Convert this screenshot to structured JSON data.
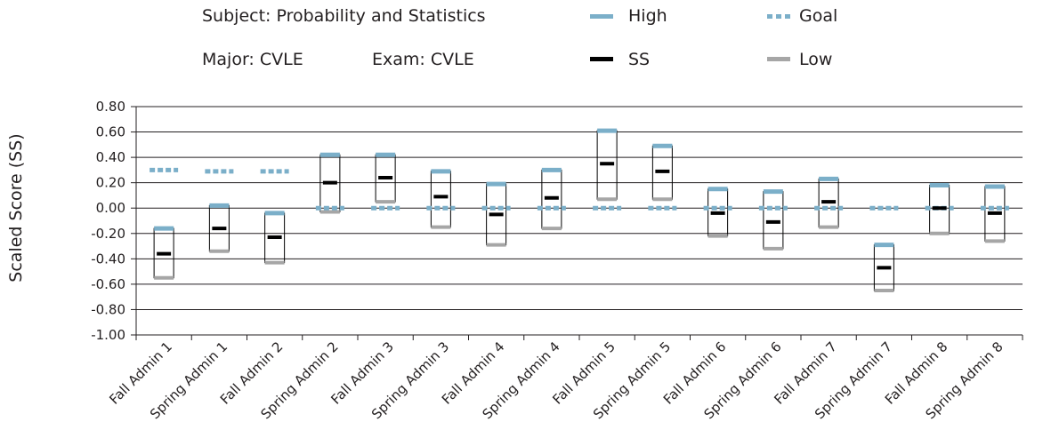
{
  "header": {
    "subject": "Subject: Probability and Statistics",
    "major": "Major: CVLE",
    "exam": "Exam: CVLE"
  },
  "legend": [
    {
      "label": "High",
      "style": "solid",
      "color": "#7bafc9"
    },
    {
      "label": "Goal",
      "style": "dotted",
      "color": "#7bafc9"
    },
    {
      "label": "SS",
      "style": "solid",
      "color": "#000000"
    },
    {
      "label": "Low",
      "style": "solid",
      "color": "#a6a6a6"
    }
  ],
  "chart_data": {
    "type": "high-low-close",
    "ylabel": "Scaled Score (SS)",
    "xlabel": "",
    "ylim": [
      -1.0,
      0.8
    ],
    "yticks": [
      "0.80",
      "0.60",
      "0.40",
      "0.20",
      "0.00",
      "-0.20",
      "-0.40",
      "-0.60",
      "-0.80",
      "-1.00"
    ],
    "grid": true,
    "legend_position": "top",
    "categories": [
      "Fall Admin 1",
      "Spring Admin 1",
      "Fall Admin 2",
      "Spring Admin 2",
      "Fall Admin 3",
      "Spring Admin 3",
      "Fall Admin 4",
      "Spring Admin 4",
      "Fall Admin 5",
      "Spring Admin 5",
      "Fall Admin 6",
      "Spring Admin 6",
      "Fall Admin 7",
      "Spring Admin 7",
      "Fall Admin 8",
      "Spring Admin 8"
    ],
    "series": [
      {
        "name": "High",
        "values": [
          -0.16,
          0.02,
          -0.04,
          0.42,
          0.42,
          0.29,
          0.19,
          0.3,
          0.61,
          0.49,
          0.15,
          0.13,
          0.23,
          -0.29,
          0.18,
          0.17
        ]
      },
      {
        "name": "SS",
        "values": [
          -0.36,
          -0.16,
          -0.23,
          0.2,
          0.24,
          0.09,
          -0.05,
          0.08,
          0.35,
          0.29,
          -0.04,
          -0.11,
          0.05,
          -0.47,
          0.0,
          -0.04
        ]
      },
      {
        "name": "Low",
        "values": [
          -0.55,
          -0.34,
          -0.43,
          -0.03,
          0.05,
          -0.15,
          -0.29,
          -0.16,
          0.07,
          0.07,
          -0.22,
          -0.32,
          -0.15,
          -0.65,
          -0.2,
          -0.26
        ]
      },
      {
        "name": "Goal",
        "values": [
          0.3,
          0.29,
          0.29,
          0.0,
          0.0,
          0.0,
          0.0,
          0.0,
          0.0,
          0.0,
          0.0,
          0.0,
          0.0,
          0.0,
          0.0,
          0.0
        ]
      }
    ],
    "colors": {
      "high": "#7bafc9",
      "ss": "#000000",
      "low": "#a6a6a6",
      "goal": "#7bafc9",
      "grid": "#231f20"
    }
  }
}
